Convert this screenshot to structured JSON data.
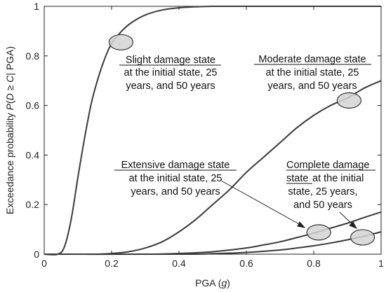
{
  "chart_data": {
    "type": "line",
    "xlabel_prefix": "PGA (",
    "xlabel_var": "g",
    "xlabel_suffix": ")",
    "ylabel_prefix": "Exceedance probability ",
    "ylabel_var": "P",
    "ylabel_paren": "(",
    "ylabel_inner": "D ≥ C",
    "ylabel_suffix": "| PGA)",
    "xlim": [
      0,
      1
    ],
    "ylim": [
      0,
      1
    ],
    "xticks": [
      "0",
      "0.2",
      "0.4",
      "0.6",
      "0.8",
      "1"
    ],
    "yticks": [
      "0",
      "0.2",
      "0.4",
      "0.6",
      "0.8",
      "1"
    ],
    "grid": false,
    "series": [
      {
        "name": "Slight damage state",
        "x": [
          0,
          0.04,
          0.06,
          0.08,
          0.1,
          0.12,
          0.14,
          0.16,
          0.18,
          0.2,
          0.23,
          0.26,
          0.3,
          0.35,
          0.4,
          0.45,
          0.5,
          0.6,
          0.8,
          1.0
        ],
        "y": [
          0,
          0.0,
          0.03,
          0.14,
          0.31,
          0.47,
          0.61,
          0.71,
          0.79,
          0.85,
          0.9,
          0.935,
          0.965,
          0.985,
          0.994,
          0.998,
          1.0,
          1.0,
          1.0,
          1.0
        ]
      },
      {
        "name": "Moderate damage state",
        "x": [
          0,
          0.1,
          0.15,
          0.2,
          0.25,
          0.3,
          0.35,
          0.4,
          0.45,
          0.5,
          0.55,
          0.6,
          0.65,
          0.7,
          0.75,
          0.8,
          0.85,
          0.9,
          0.95,
          1.0
        ],
        "y": [
          0,
          0.0,
          0.0,
          0.003,
          0.01,
          0.025,
          0.05,
          0.09,
          0.14,
          0.2,
          0.26,
          0.33,
          0.39,
          0.45,
          0.51,
          0.56,
          0.6,
          0.63,
          0.67,
          0.7
        ]
      },
      {
        "name": "Extensive damage state",
        "x": [
          0,
          0.3,
          0.4,
          0.5,
          0.6,
          0.65,
          0.7,
          0.75,
          0.8,
          0.85,
          0.9,
          0.95,
          1.0
        ],
        "y": [
          0,
          0.0,
          0.003,
          0.01,
          0.025,
          0.037,
          0.05,
          0.067,
          0.085,
          0.105,
          0.125,
          0.148,
          0.17
        ]
      },
      {
        "name": "Complete damage state",
        "x": [
          0,
          0.4,
          0.5,
          0.6,
          0.7,
          0.75,
          0.8,
          0.85,
          0.9,
          0.95,
          1.0
        ],
        "y": [
          0,
          0.0,
          0.002,
          0.007,
          0.017,
          0.025,
          0.034,
          0.045,
          0.058,
          0.073,
          0.09
        ]
      }
    ],
    "annotations": [
      {
        "title": "Slight damage state",
        "lines": [
          "at the initial state, 25",
          "years, and 50 years"
        ],
        "ellipse_at": [
          0.228,
          0.855
        ]
      },
      {
        "title": "Moderate damage state",
        "lines": [
          "at the initial state, 25",
          "years, and 50 years"
        ],
        "ellipse_at": [
          0.905,
          0.62
        ]
      },
      {
        "title": "Extensive damage state",
        "lines": [
          "at the initial state, 25",
          "years, and 50 years"
        ],
        "ellipse_at": [
          0.815,
          0.088
        ]
      },
      {
        "title_lines": [
          "Complete damage",
          "state"
        ],
        "tail": " at the initial",
        "lines": [
          "state, 25 years,",
          "and 50 years"
        ],
        "ellipse_at": [
          0.945,
          0.068
        ]
      }
    ],
    "colors": {
      "line": "#3a3a3a",
      "ellipse_fill": "#d4d4d4",
      "ellipse_stroke": "#333333"
    }
  }
}
